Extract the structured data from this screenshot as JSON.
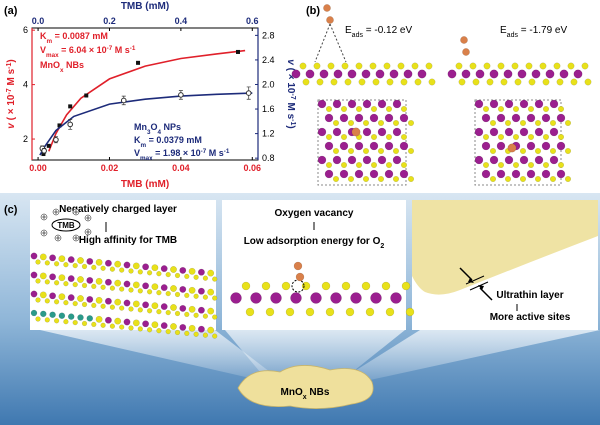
{
  "panel_labels": [
    "(a)",
    "(b)",
    "(c)"
  ],
  "chart_data": {
    "type": "scatter",
    "xlabel": "TMB (mM)",
    "x2label": "TMB (mM)",
    "ylabel": [
      {
        "text": "v",
        "style": "italic"
      },
      {
        "text": " ( × 10"
      },
      {
        "text": "-7",
        "pos": "sup"
      },
      {
        "text": " M s"
      },
      {
        "text": "-1",
        "pos": "sup"
      },
      {
        "text": ")"
      }
    ],
    "y2label": [
      {
        "text": "v",
        "style": "italic"
      },
      {
        "text": " ( × 10"
      },
      {
        "text": "-7",
        "pos": "sup"
      },
      {
        "text": " M s"
      },
      {
        "text": "-1",
        "pos": "sup"
      },
      {
        "text": ")"
      }
    ],
    "xlim": [
      -0.0017,
      0.0616
    ],
    "xticks": [
      {
        "value": 0,
        "label": "0.00"
      },
      0.02,
      0.04,
      0.06
    ],
    "x2lim": [
      -0.017,
      0.616
    ],
    "x2ticks": [
      {
        "value": 0,
        "label": "0.0"
      },
      0.2,
      0.4,
      0.6
    ],
    "ylim": [
      1.23,
      6.08
    ],
    "yticks": [
      2,
      4,
      6
    ],
    "y2lim": [
      0.77,
      2.92
    ],
    "y2ticks": [
      0.8,
      1.2,
      1.6,
      {
        "value": 2,
        "label": "2.0"
      },
      2.4,
      2.8
    ],
    "series": [
      {
        "name": [
          {
            "text": "MnO"
          },
          {
            "text": "x",
            "pos": "sub"
          },
          {
            "text": " NBs"
          }
        ],
        "color": "#e0202a",
        "marker_color": "#111111",
        "marker": "square",
        "x": [
          0.0015,
          0.003,
          0.006,
          0.009,
          0.0135,
          0.028,
          0.056
        ],
        "values": [
          1.45,
          1.75,
          2.5,
          3.2,
          3.6,
          4.8,
          5.2
        ],
        "fit_x": [
          0.003,
          0.005,
          0.008,
          0.012,
          0.02,
          0.03,
          0.04,
          0.05,
          0.058
        ],
        "fit_values": [
          1.55,
          2.2,
          2.89,
          3.5,
          4.21,
          4.68,
          4.96,
          5.13,
          5.25
        ],
        "annotations": [
          [
            {
              "text": "K"
            },
            {
              "text": "m",
              "pos": "sub"
            },
            {
              "text": " = 0.0087 mM"
            }
          ],
          [
            {
              "text": "V"
            },
            {
              "text": "max",
              "pos": "sub"
            },
            {
              "text": " = 6.04 × 10"
            },
            {
              "text": "-7",
              "pos": "sup"
            },
            {
              "text": " M s"
            },
            {
              "text": "-1",
              "pos": "sup"
            }
          ]
        ]
      },
      {
        "name": [
          {
            "text": "Mn"
          },
          {
            "text": "3",
            "pos": "sub"
          },
          {
            "text": "O"
          },
          {
            "text": "4",
            "pos": "sub"
          },
          {
            "text": " NPs"
          }
        ],
        "color": "#1d2b7a",
        "marker_color": "#333333",
        "marker": "circle",
        "axis": "y2",
        "xaxis": "x2",
        "x": [
          0.012,
          0.017,
          0.05,
          0.09,
          0.24,
          0.4,
          0.59
        ],
        "values": [
          0.96,
          0.92,
          1.1,
          1.35,
          1.74,
          1.83,
          1.86
        ],
        "errors": [
          0.04,
          0.04,
          0.05,
          0.08,
          0.07,
          0.07,
          0.1
        ],
        "fit_x": [
          0.005,
          0.02,
          0.05,
          0.1,
          0.2,
          0.3,
          0.4,
          0.5,
          0.6
        ],
        "fit_values": [
          0.85,
          1.0,
          1.25,
          1.48,
          1.68,
          1.76,
          1.81,
          1.84,
          1.86
        ],
        "annotations": [
          [
            {
              "text": "K"
            },
            {
              "text": "m",
              "pos": "sub"
            },
            {
              "text": " = 0.0379 mM"
            }
          ],
          [
            {
              "text": "V"
            },
            {
              "text": "max",
              "pos": "sub"
            },
            {
              "text": " = 1.98 × 10"
            },
            {
              "text": "-7",
              "pos": "sup"
            },
            {
              "text": " M s"
            },
            {
              "text": "-1",
              "pos": "sup"
            }
          ]
        ]
      }
    ]
  },
  "panel_b": {
    "energies": [
      [
        {
          "text": "E"
        },
        {
          "text": "ads",
          "pos": "sub"
        },
        {
          "text": " = -0.12 eV"
        }
      ],
      [
        {
          "text": "E"
        },
        {
          "text": "ads",
          "pos": "sub"
        },
        {
          "text": " = -1.79 eV"
        }
      ]
    ]
  },
  "panel_c": {
    "left": {
      "title": "Negatively charged layer",
      "molecule": "TMB",
      "text": "High affinity for TMB"
    },
    "middle": {
      "title": "Oxygen vacancy",
      "text": [
        {
          "text": "Low  adsorption energy for O"
        },
        {
          "text": "2",
          "pos": "sub"
        }
      ]
    },
    "right": {
      "title": "Ultrathin layer",
      "text": "More active sites"
    },
    "product": [
      {
        "text": "MnO"
      },
      {
        "text": "x",
        "pos": "sub"
      },
      {
        "text": " NBs"
      }
    ]
  }
}
